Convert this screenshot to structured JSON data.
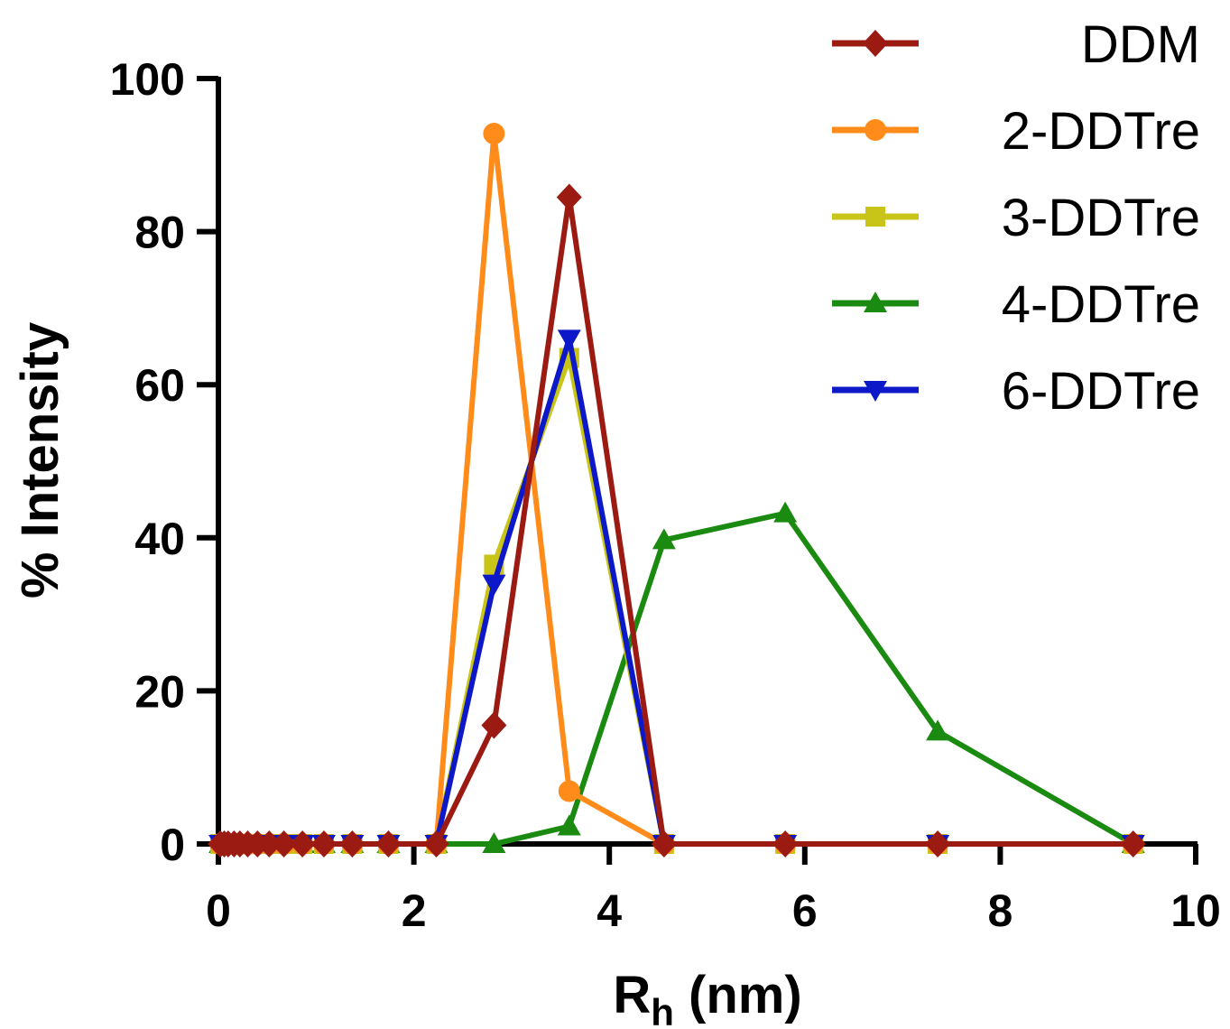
{
  "chart_data": {
    "type": "line",
    "title": "",
    "xlabel": {
      "main": "R",
      "sub": "h",
      "rest": " (nm)"
    },
    "ylabel": "% Intensity",
    "xlim": [
      0,
      10
    ],
    "ylim": [
      0,
      100
    ],
    "xticks": [
      "0",
      "2",
      "4",
      "6",
      "8",
      "10"
    ],
    "yticks": [
      "0",
      "20",
      "40",
      "60",
      "80",
      "100"
    ],
    "grid": false,
    "legend_position": "top-right",
    "x": [
      0.02,
      0.06,
      0.1,
      0.16,
      0.22,
      0.3,
      0.4,
      0.52,
      0.67,
      0.86,
      1.08,
      1.37,
      1.74,
      2.23,
      2.82,
      3.59,
      4.56,
      5.8,
      7.36,
      9.36
    ],
    "series": [
      {
        "name": "DDM",
        "color": "#9b1b12",
        "marker": "diamond",
        "values": [
          0,
          0,
          0,
          0,
          0,
          0,
          0,
          0,
          0,
          0,
          0,
          0,
          0,
          0,
          15.5,
          84.5,
          0,
          0,
          0,
          0
        ]
      },
      {
        "name": "2-DDTre",
        "color": "#ff8c1a",
        "marker": "circle",
        "values": [
          0,
          0,
          0,
          0,
          0,
          0,
          0,
          0,
          0,
          0,
          0,
          0,
          0,
          0,
          92.8,
          6.9,
          0,
          0,
          0,
          0
        ]
      },
      {
        "name": "3-DDTre",
        "color": "#c8c418",
        "marker": "square",
        "values": [
          0,
          0,
          0,
          0,
          0,
          0,
          0,
          0,
          0,
          0,
          0,
          0,
          0,
          0,
          36.5,
          63.5,
          0,
          0,
          0,
          0
        ]
      },
      {
        "name": "4-DDTre",
        "color": "#1b8a10",
        "marker": "triangle-up",
        "values": [
          0,
          0,
          0,
          0,
          0,
          0,
          0,
          0,
          0,
          0,
          0,
          0,
          0,
          0,
          0,
          2.3,
          39.7,
          43.2,
          14.7,
          0
        ]
      },
      {
        "name": "6-DDTre",
        "color": "#0d19c8",
        "marker": "triangle-down",
        "values": [
          0,
          0,
          0,
          0,
          0,
          0,
          0,
          0,
          0,
          0,
          0,
          0,
          0,
          0,
          34,
          66,
          0,
          0,
          0,
          0
        ]
      }
    ]
  }
}
